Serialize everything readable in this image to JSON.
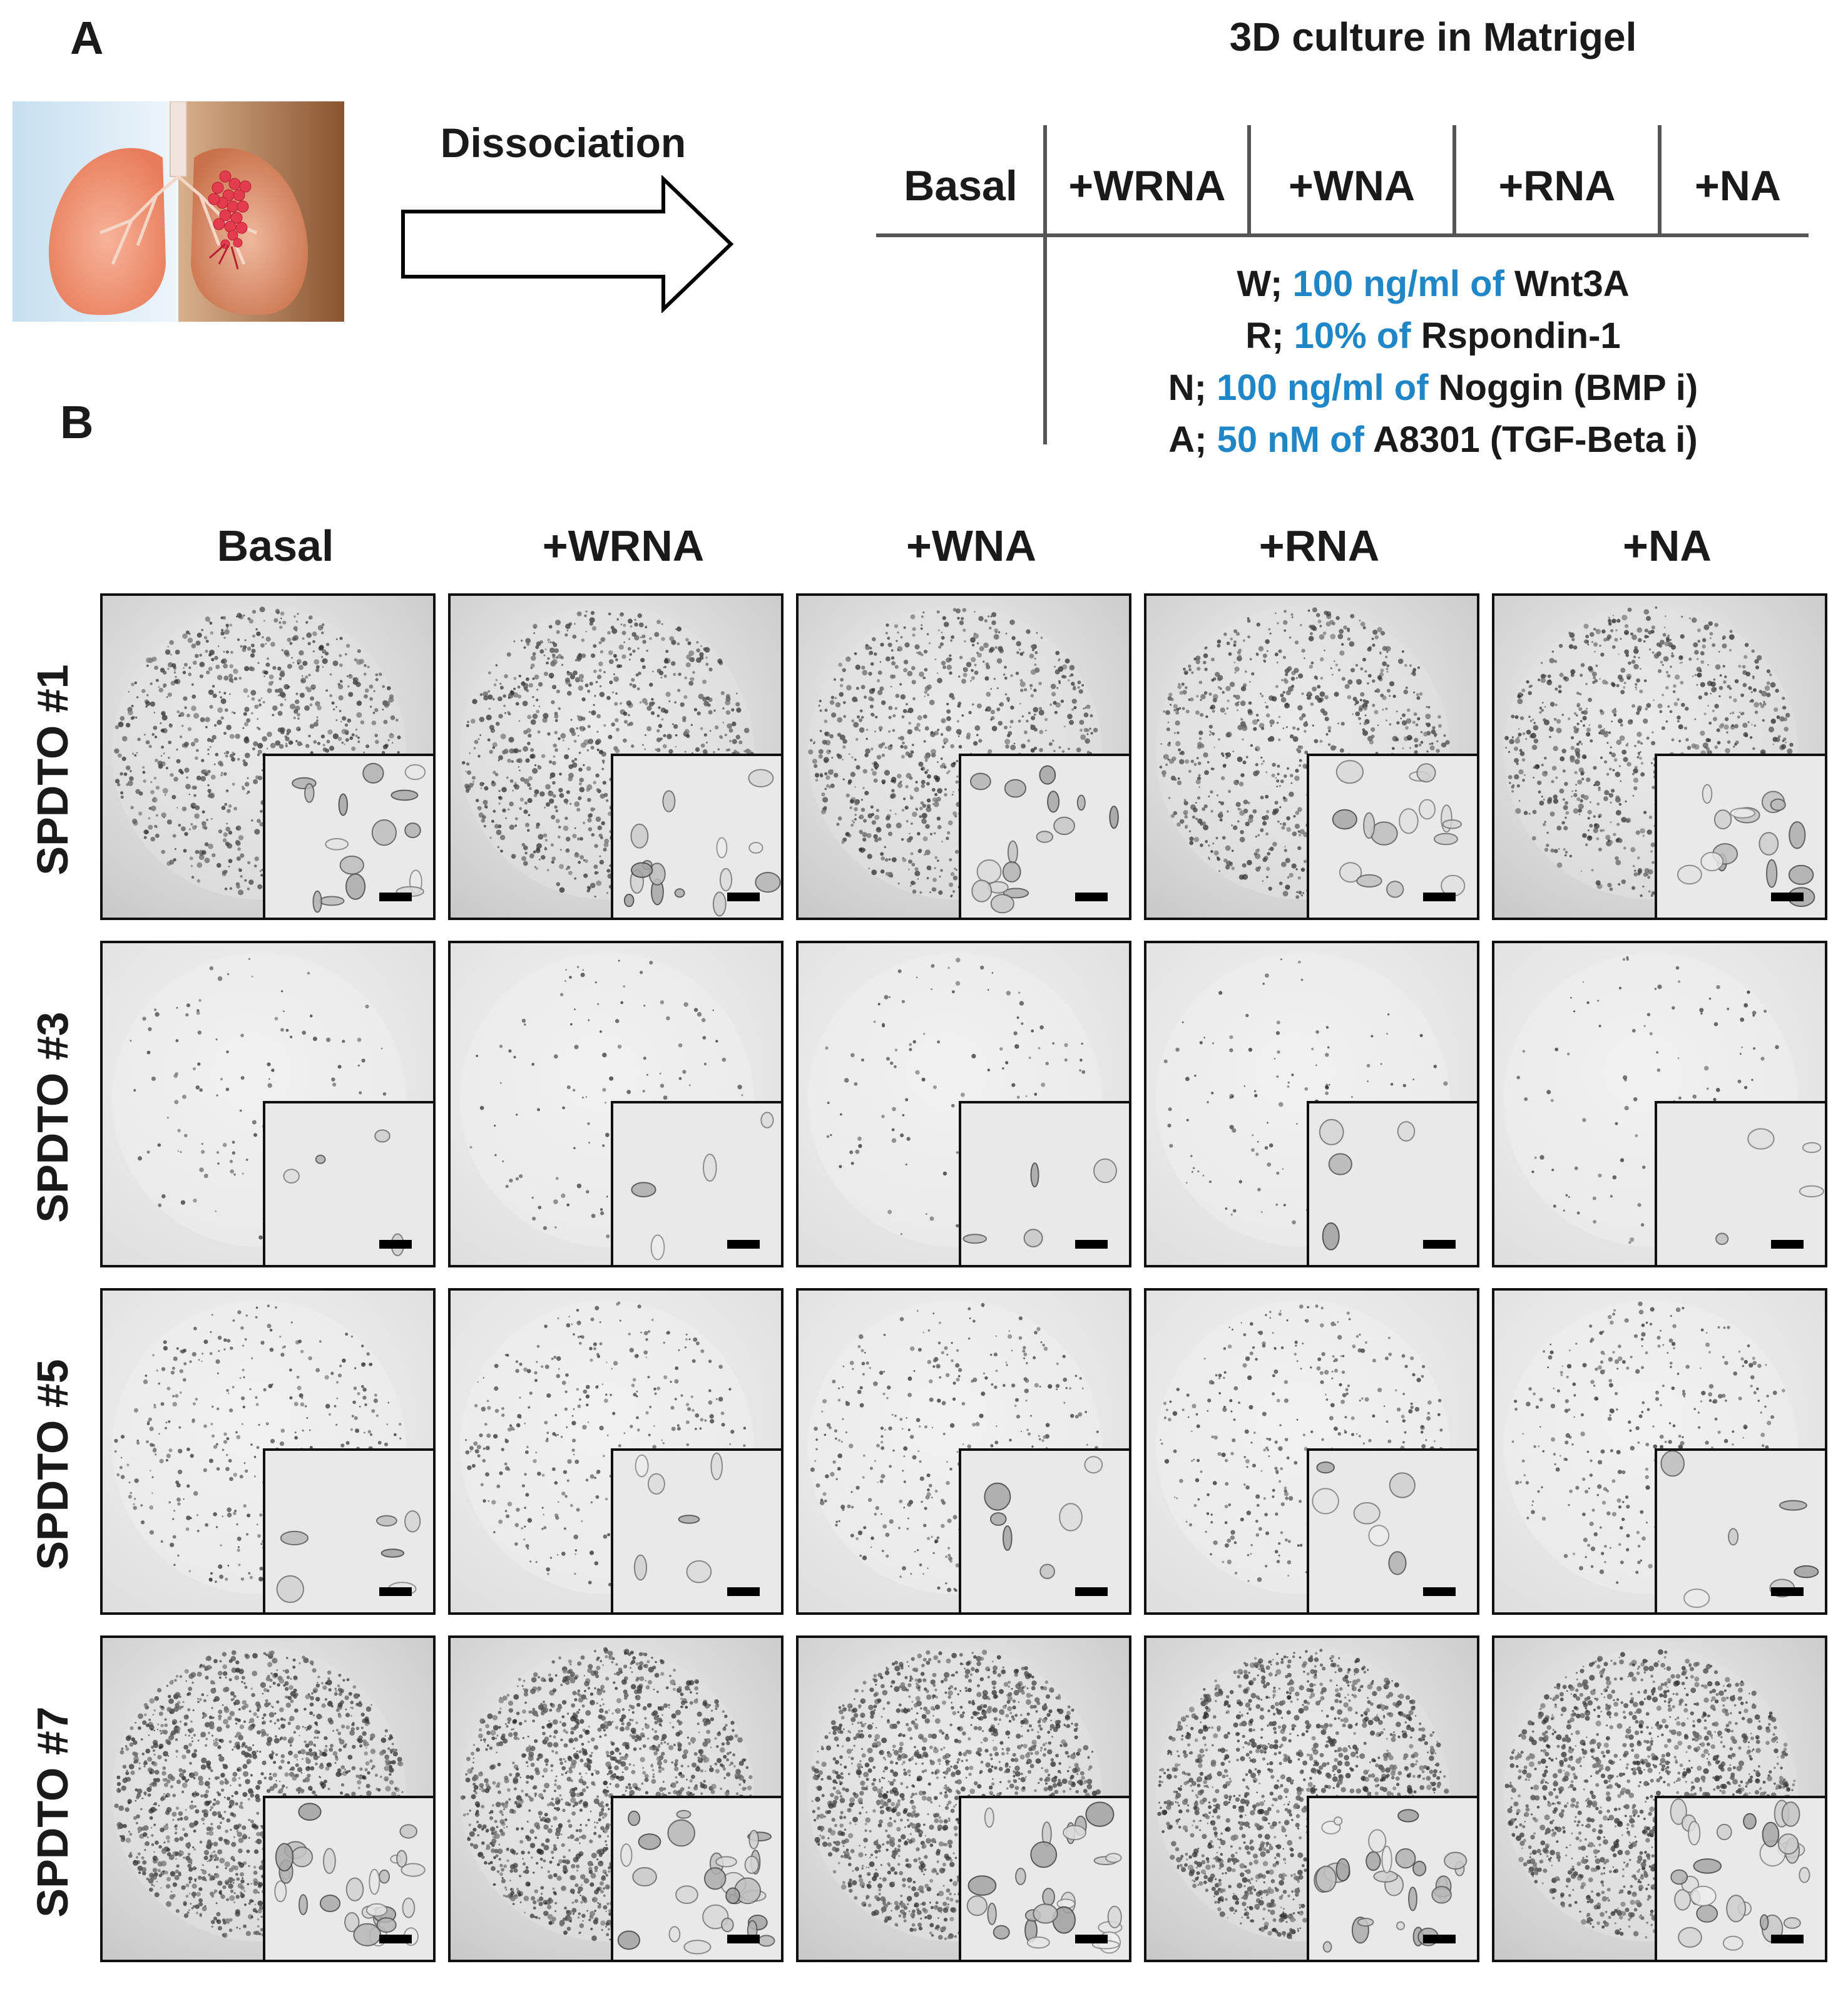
{
  "panel_a": {
    "label": "A",
    "arrow_label": "Dissociation",
    "table_title": "3D culture in Matrigel",
    "conditions": [
      "Basal",
      "+WRNA",
      "+WNA",
      "+RNA",
      "+NA"
    ],
    "legend": [
      {
        "key": "W;",
        "amount": "100 ng/ml of",
        "agent": "Wnt3A"
      },
      {
        "key": "R;",
        "amount": "10% of",
        "agent": "Rspondin-1"
      },
      {
        "key": "N;",
        "amount": "100 ng/ml of",
        "agent": "Noggin (BMP i)"
      },
      {
        "key": "A;",
        "amount": "50 nM of",
        "agent": "A8301 (TGF-Beta i)"
      }
    ],
    "highlight_color": "#1f86c8"
  },
  "panel_b": {
    "label": "B",
    "columns": [
      "Basal",
      "+WRNA",
      "+WNA",
      "+RNA",
      "+NA"
    ],
    "rows": [
      {
        "label": "SPDTO #1",
        "density": "high"
      },
      {
        "label": "SPDTO #3",
        "density": "low"
      },
      {
        "label": "SPDTO #5",
        "density": "medium"
      },
      {
        "label": "SPDTO #7",
        "density": "very-high"
      }
    ]
  }
}
